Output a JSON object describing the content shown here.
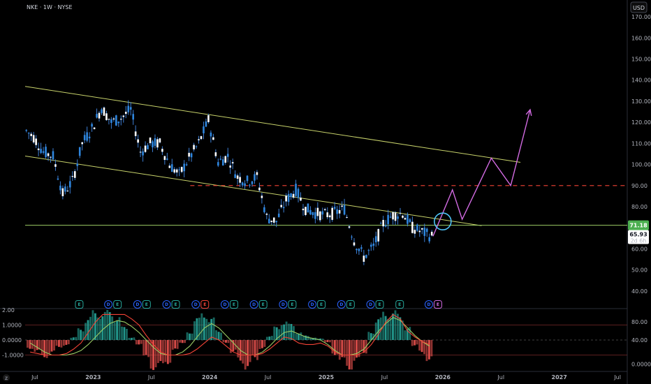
{
  "header": {
    "symbol": "NKE · 1W · NYSE"
  },
  "currency": "USD",
  "tz_badge": "Z",
  "colors": {
    "up": "#26a69a",
    "down": "#ffffff",
    "wick": "#3d7fd6",
    "candle_up": "#2e86de",
    "channel": "#c8d36b",
    "support": "#9ccc65",
    "resistance": "#f44336",
    "projection": "#d36be3",
    "circle": "#4fc3f7",
    "osc_pos": "#26a69a",
    "osc_neg": "#ef5350",
    "osc_line_red": "#f44336",
    "osc_line_green": "#9ccc65",
    "price_tag": "#4caf50"
  },
  "chart_data": [
    {
      "type": "line",
      "name": "price",
      "x_ticks": [
        "Jul",
        "2023",
        "Jul",
        "2024",
        "Jul",
        "2025",
        "Jul",
        "2026",
        "Jul",
        "2027",
        "Jul"
      ],
      "y_ticks": [
        "170.00",
        "160.00",
        "150.00",
        "140.00",
        "130.00",
        "120.00",
        "110.00",
        "100.00",
        "90.00",
        "80.00",
        "70.00",
        "60.00",
        "50.00",
        "40.00"
      ],
      "ylim": [
        35,
        172
      ],
      "x_range": [
        "2022-06",
        "2027-08"
      ],
      "close_series": [
        {
          "x": "2022-06",
          "y": 113
        },
        {
          "x": "2022-07",
          "y": 106
        },
        {
          "x": "2022-08",
          "y": 104
        },
        {
          "x": "2022-09",
          "y": 86
        },
        {
          "x": "2022-10",
          "y": 92
        },
        {
          "x": "2022-11",
          "y": 110
        },
        {
          "x": "2022-12",
          "y": 117
        },
        {
          "x": "2023-01",
          "y": 127
        },
        {
          "x": "2023-02",
          "y": 120
        },
        {
          "x": "2023-03",
          "y": 122
        },
        {
          "x": "2023-04",
          "y": 126
        },
        {
          "x": "2023-05",
          "y": 106
        },
        {
          "x": "2023-06",
          "y": 110
        },
        {
          "x": "2023-07",
          "y": 110
        },
        {
          "x": "2023-08",
          "y": 100
        },
        {
          "x": "2023-09",
          "y": 95
        },
        {
          "x": "2023-10",
          "y": 103
        },
        {
          "x": "2023-11",
          "y": 110
        },
        {
          "x": "2023-12",
          "y": 121
        },
        {
          "x": "2024-01",
          "y": 101
        },
        {
          "x": "2024-02",
          "y": 104
        },
        {
          "x": "2024-03",
          "y": 94
        },
        {
          "x": "2024-04",
          "y": 92
        },
        {
          "x": "2024-05",
          "y": 94
        },
        {
          "x": "2024-06",
          "y": 75
        },
        {
          "x": "2024-07",
          "y": 73
        },
        {
          "x": "2024-08",
          "y": 83
        },
        {
          "x": "2024-09",
          "y": 88
        },
        {
          "x": "2024-10",
          "y": 79
        },
        {
          "x": "2024-11",
          "y": 77
        },
        {
          "x": "2024-12",
          "y": 76
        },
        {
          "x": "2025-01",
          "y": 77
        },
        {
          "x": "2025-02",
          "y": 79
        },
        {
          "x": "2025-03",
          "y": 64
        },
        {
          "x": "2025-04",
          "y": 56
        },
        {
          "x": "2025-05",
          "y": 61
        },
        {
          "x": "2025-06",
          "y": 72
        },
        {
          "x": "2025-07",
          "y": 76
        },
        {
          "x": "2025-08",
          "y": 77
        },
        {
          "x": "2025-09",
          "y": 70
        },
        {
          "x": "2025-10",
          "y": 68
        },
        {
          "x": "2025-11",
          "y": 65.93
        }
      ],
      "channel_upper": [
        {
          "x": "2022-06",
          "y": 137
        },
        {
          "x": "2026-09",
          "y": 101
        }
      ],
      "channel_lower": [
        {
          "x": "2022-06",
          "y": 104
        },
        {
          "x": "2026-05",
          "y": 71
        }
      ],
      "support_level": 71.18,
      "resistance_level": 90,
      "projection": [
        {
          "x": "2025-12",
          "y": 66
        },
        {
          "x": "2026-02",
          "y": 88
        },
        {
          "x": "2026-03",
          "y": 74
        },
        {
          "x": "2026-06",
          "y": 103
        },
        {
          "x": "2026-08",
          "y": 90
        },
        {
          "x": "2026-10",
          "y": 126
        }
      ],
      "circle_at": {
        "x": "2026-01",
        "y": 73
      },
      "last_price": "71.18",
      "current_price": "65.93",
      "countdown": "2d 6h"
    },
    {
      "type": "bar",
      "name": "oscillator",
      "left_ticks": [
        "2.00",
        "1.0000",
        "0.0000",
        "-1.0000"
      ],
      "right_ticks": [
        "80.00",
        "40.00",
        "0.0000"
      ],
      "ylim": [
        -2.0,
        2.0
      ],
      "histogram": [
        -0.6,
        -0.9,
        -1.2,
        -1.0,
        -0.5,
        -0.4,
        0.2,
        0.8,
        1.6,
        2.0,
        2.0,
        2.0,
        1.7,
        0.9,
        0.2,
        -0.3,
        -1.4,
        -2.0,
        -2.0,
        -1.6,
        -0.8,
        -0.2,
        0.6,
        1.5,
        2.0,
        1.5,
        0.7,
        -0.2,
        -0.9,
        -1.6,
        -2.0,
        -1.4,
        -0.6,
        0.3,
        0.9,
        1.4,
        1.1,
        0.6,
        0.3,
        0.2,
        0.1,
        -0.2,
        -1.0,
        -1.6,
        -2.0,
        -1.6,
        -0.9,
        0.6,
        1.5,
        2.0,
        2.0,
        1.8,
        0.9,
        -0.4,
        -1.0,
        -1.4
      ],
      "line_red": [
        -0.8,
        -0.9,
        -1.0,
        -1.0,
        -1.0,
        -0.9,
        -0.6,
        -0.2,
        0.5,
        1.2,
        1.7,
        1.7,
        1.7,
        1.7,
        1.4,
        1.0,
        0.3,
        -0.3,
        -0.8,
        -1.0,
        -1.0,
        -1.0,
        -0.9,
        -0.6,
        -0.2,
        0.2,
        0.0,
        -0.4,
        -0.8,
        -1.0,
        -1.0,
        -1.0,
        -0.9,
        -0.6,
        -0.2,
        0.2,
        0.1,
        -0.2,
        -0.3,
        -0.3,
        -0.2,
        -0.4,
        -0.8,
        -1.0,
        -1.0,
        -1.0,
        -0.8,
        -0.3,
        0.4,
        1.2,
        1.7,
        1.4,
        0.6,
        0.2,
        -0.1,
        -0.3
      ],
      "line_green": [
        -0.2,
        -0.5,
        -0.8,
        -1.0,
        -1.0,
        -1.0,
        -0.9,
        -0.7,
        -0.3,
        0.2,
        0.7,
        1.1,
        1.3,
        1.2,
        0.9,
        0.5,
        0.0,
        -0.5,
        -0.9,
        -1.0,
        -1.0,
        -0.8,
        -0.4,
        0.2,
        0.8,
        1.1,
        0.8,
        0.3,
        -0.2,
        -0.7,
        -1.0,
        -1.0,
        -0.8,
        -0.4,
        0.1,
        0.5,
        0.6,
        0.4,
        0.2,
        0.1,
        0.0,
        -0.3,
        -0.7,
        -1.0,
        -1.0,
        -0.9,
        -0.6,
        0.0,
        0.6,
        1.1,
        1.5,
        1.3,
        0.8,
        0.3,
        -0.1,
        -0.4
      ]
    }
  ],
  "earnings_badges": [
    {
      "x": "2022-12",
      "label": "E",
      "style": "green"
    },
    {
      "x": "2023-03",
      "label": "D",
      "style": "blue"
    },
    {
      "x": "2023-03",
      "label": "E",
      "style": "green"
    },
    {
      "x": "2023-06",
      "label": "D",
      "style": "blue"
    },
    {
      "x": "2023-06",
      "label": "E",
      "style": "green"
    },
    {
      "x": "2023-09",
      "label": "D",
      "style": "blue"
    },
    {
      "x": "2023-09",
      "label": "E",
      "style": "green"
    },
    {
      "x": "2023-12",
      "label": "D",
      "style": "blue"
    },
    {
      "x": "2023-12",
      "label": "E",
      "style": "red"
    },
    {
      "x": "2024-03",
      "label": "D",
      "style": "blue"
    },
    {
      "x": "2024-03",
      "label": "E",
      "style": "green"
    },
    {
      "x": "2024-06",
      "label": "D",
      "style": "blue"
    },
    {
      "x": "2024-06",
      "label": "E",
      "style": "green"
    },
    {
      "x": "2024-09",
      "label": "D",
      "style": "blue"
    },
    {
      "x": "2024-09",
      "label": "E",
      "style": "green"
    },
    {
      "x": "2024-12",
      "label": "D",
      "style": "blue"
    },
    {
      "x": "2024-12",
      "label": "E",
      "style": "green"
    },
    {
      "x": "2025-03",
      "label": "D",
      "style": "blue"
    },
    {
      "x": "2025-03",
      "label": "E",
      "style": "green"
    },
    {
      "x": "2025-06",
      "label": "D",
      "style": "blue"
    },
    {
      "x": "2025-06",
      "label": "E",
      "style": "green"
    },
    {
      "x": "2025-09",
      "label": "E",
      "style": "green"
    },
    {
      "x": "2025-12",
      "label": "D",
      "style": "blue"
    },
    {
      "x": "2025-12",
      "label": "E",
      "style": "purple"
    }
  ]
}
